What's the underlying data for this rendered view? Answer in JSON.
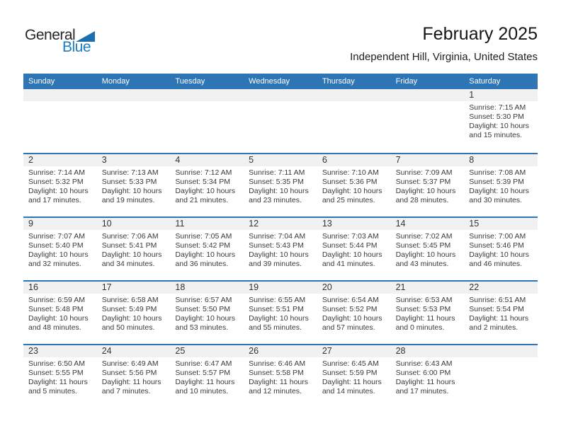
{
  "logo": {
    "part1": "General",
    "part2": "Blue"
  },
  "header": {
    "month_title": "February 2025",
    "location": "Independent Hill, Virginia, United States"
  },
  "weekday_headers": [
    "Sunday",
    "Monday",
    "Tuesday",
    "Wednesday",
    "Thursday",
    "Friday",
    "Saturday"
  ],
  "colors": {
    "header_blue": "#2E75B6",
    "row_border_blue": "#2E75B6",
    "date_band_gray": "#F1F1F2",
    "logo_text_blue": "#1B7EC2",
    "logo_triangle_blue": "#1C6FAE",
    "text_dark": "#3A3A3A"
  },
  "weeks": [
    [
      null,
      null,
      null,
      null,
      null,
      null,
      {
        "date": "1",
        "lines": [
          "Sunrise: 7:15 AM",
          "Sunset: 5:30 PM",
          "Daylight: 10 hours",
          "and 15 minutes."
        ]
      }
    ],
    [
      {
        "date": "2",
        "lines": [
          "Sunrise: 7:14 AM",
          "Sunset: 5:32 PM",
          "Daylight: 10 hours",
          "and 17 minutes."
        ]
      },
      {
        "date": "3",
        "lines": [
          "Sunrise: 7:13 AM",
          "Sunset: 5:33 PM",
          "Daylight: 10 hours",
          "and 19 minutes."
        ]
      },
      {
        "date": "4",
        "lines": [
          "Sunrise: 7:12 AM",
          "Sunset: 5:34 PM",
          "Daylight: 10 hours",
          "and 21 minutes."
        ]
      },
      {
        "date": "5",
        "lines": [
          "Sunrise: 7:11 AM",
          "Sunset: 5:35 PM",
          "Daylight: 10 hours",
          "and 23 minutes."
        ]
      },
      {
        "date": "6",
        "lines": [
          "Sunrise: 7:10 AM",
          "Sunset: 5:36 PM",
          "Daylight: 10 hours",
          "and 25 minutes."
        ]
      },
      {
        "date": "7",
        "lines": [
          "Sunrise: 7:09 AM",
          "Sunset: 5:37 PM",
          "Daylight: 10 hours",
          "and 28 minutes."
        ]
      },
      {
        "date": "8",
        "lines": [
          "Sunrise: 7:08 AM",
          "Sunset: 5:39 PM",
          "Daylight: 10 hours",
          "and 30 minutes."
        ]
      }
    ],
    [
      {
        "date": "9",
        "lines": [
          "Sunrise: 7:07 AM",
          "Sunset: 5:40 PM",
          "Daylight: 10 hours",
          "and 32 minutes."
        ]
      },
      {
        "date": "10",
        "lines": [
          "Sunrise: 7:06 AM",
          "Sunset: 5:41 PM",
          "Daylight: 10 hours",
          "and 34 minutes."
        ]
      },
      {
        "date": "11",
        "lines": [
          "Sunrise: 7:05 AM",
          "Sunset: 5:42 PM",
          "Daylight: 10 hours",
          "and 36 minutes."
        ]
      },
      {
        "date": "12",
        "lines": [
          "Sunrise: 7:04 AM",
          "Sunset: 5:43 PM",
          "Daylight: 10 hours",
          "and 39 minutes."
        ]
      },
      {
        "date": "13",
        "lines": [
          "Sunrise: 7:03 AM",
          "Sunset: 5:44 PM",
          "Daylight: 10 hours",
          "and 41 minutes."
        ]
      },
      {
        "date": "14",
        "lines": [
          "Sunrise: 7:02 AM",
          "Sunset: 5:45 PM",
          "Daylight: 10 hours",
          "and 43 minutes."
        ]
      },
      {
        "date": "15",
        "lines": [
          "Sunrise: 7:00 AM",
          "Sunset: 5:46 PM",
          "Daylight: 10 hours",
          "and 46 minutes."
        ]
      }
    ],
    [
      {
        "date": "16",
        "lines": [
          "Sunrise: 6:59 AM",
          "Sunset: 5:48 PM",
          "Daylight: 10 hours",
          "and 48 minutes."
        ]
      },
      {
        "date": "17",
        "lines": [
          "Sunrise: 6:58 AM",
          "Sunset: 5:49 PM",
          "Daylight: 10 hours",
          "and 50 minutes."
        ]
      },
      {
        "date": "18",
        "lines": [
          "Sunrise: 6:57 AM",
          "Sunset: 5:50 PM",
          "Daylight: 10 hours",
          "and 53 minutes."
        ]
      },
      {
        "date": "19",
        "lines": [
          "Sunrise: 6:55 AM",
          "Sunset: 5:51 PM",
          "Daylight: 10 hours",
          "and 55 minutes."
        ]
      },
      {
        "date": "20",
        "lines": [
          "Sunrise: 6:54 AM",
          "Sunset: 5:52 PM",
          "Daylight: 10 hours",
          "and 57 minutes."
        ]
      },
      {
        "date": "21",
        "lines": [
          "Sunrise: 6:53 AM",
          "Sunset: 5:53 PM",
          "Daylight: 11 hours",
          "and 0 minutes."
        ]
      },
      {
        "date": "22",
        "lines": [
          "Sunrise: 6:51 AM",
          "Sunset: 5:54 PM",
          "Daylight: 11 hours",
          "and 2 minutes."
        ]
      }
    ],
    [
      {
        "date": "23",
        "lines": [
          "Sunrise: 6:50 AM",
          "Sunset: 5:55 PM",
          "Daylight: 11 hours",
          "and 5 minutes."
        ]
      },
      {
        "date": "24",
        "lines": [
          "Sunrise: 6:49 AM",
          "Sunset: 5:56 PM",
          "Daylight: 11 hours",
          "and 7 minutes."
        ]
      },
      {
        "date": "25",
        "lines": [
          "Sunrise: 6:47 AM",
          "Sunset: 5:57 PM",
          "Daylight: 11 hours",
          "and 10 minutes."
        ]
      },
      {
        "date": "26",
        "lines": [
          "Sunrise: 6:46 AM",
          "Sunset: 5:58 PM",
          "Daylight: 11 hours",
          "and 12 minutes."
        ]
      },
      {
        "date": "27",
        "lines": [
          "Sunrise: 6:45 AM",
          "Sunset: 5:59 PM",
          "Daylight: 11 hours",
          "and 14 minutes."
        ]
      },
      {
        "date": "28",
        "lines": [
          "Sunrise: 6:43 AM",
          "Sunset: 6:00 PM",
          "Daylight: 11 hours",
          "and 17 minutes."
        ]
      },
      null
    ]
  ]
}
